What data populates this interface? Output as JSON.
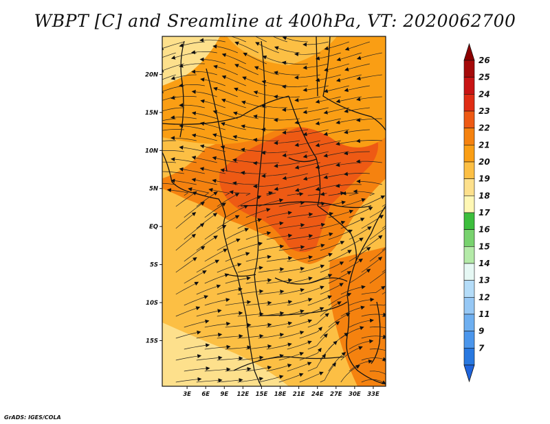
{
  "title": "WBPT [C] and Sreamline at 400hPa, VT: 2020062700",
  "credit": "GrADS: IGES/COLA",
  "map": {
    "lon_range": [
      -1,
      35
    ],
    "lat_range": [
      -21,
      25
    ],
    "lat_ticks": [
      {
        "value": 20,
        "label": "20N"
      },
      {
        "value": 15,
        "label": "15N"
      },
      {
        "value": 10,
        "label": "10N"
      },
      {
        "value": 5,
        "label": "5N"
      },
      {
        "value": 0,
        "label": "EQ"
      },
      {
        "value": -5,
        "label": "5S"
      },
      {
        "value": -10,
        "label": "10S"
      },
      {
        "value": -15,
        "label": "15S"
      }
    ],
    "lon_ticks": [
      {
        "value": 3,
        "label": "3E"
      },
      {
        "value": 6,
        "label": "6E"
      },
      {
        "value": 9,
        "label": "9E"
      },
      {
        "value": 12,
        "label": "12E"
      },
      {
        "value": 15,
        "label": "15E"
      },
      {
        "value": 18,
        "label": "18E"
      },
      {
        "value": 21,
        "label": "21E"
      },
      {
        "value": 24,
        "label": "24E"
      },
      {
        "value": 27,
        "label": "27E"
      },
      {
        "value": 30,
        "label": "30E"
      },
      {
        "value": 33,
        "label": "33E"
      }
    ]
  },
  "colorbar": {
    "levels": [
      {
        "label": "26",
        "color": "#a50a0a"
      },
      {
        "label": "25",
        "color": "#c81414"
      },
      {
        "label": "24",
        "color": "#e02d14"
      },
      {
        "label": "23",
        "color": "#ee5a14"
      },
      {
        "label": "22",
        "color": "#f5820f"
      },
      {
        "label": "21",
        "color": "#fa9e14"
      },
      {
        "label": "20",
        "color": "#fcbf44"
      },
      {
        "label": "19",
        "color": "#fde08c"
      },
      {
        "label": "18",
        "color": "#fff7b4"
      },
      {
        "label": "17",
        "color": "#3cbe3c"
      },
      {
        "label": "16",
        "color": "#78d26e"
      },
      {
        "label": "15",
        "color": "#b4eaa8"
      },
      {
        "label": "14",
        "color": "#e6f8f4"
      },
      {
        "label": "13",
        "color": "#b4dcf8"
      },
      {
        "label": "12",
        "color": "#96c8f5"
      },
      {
        "label": "11",
        "color": "#6eaff0"
      },
      {
        "label": "9",
        "color": "#4b96ec"
      },
      {
        "label": "7",
        "color": "#2878e0"
      }
    ],
    "top_color": "#8c0000",
    "bottom_color": "#1e64dc"
  },
  "field": {
    "base_color": "#fcbf44",
    "regions": [
      {
        "name": "warm-core-central",
        "color": "#f5820f"
      },
      {
        "name": "hot-core-central",
        "color": "#ee5a14"
      },
      {
        "name": "hot-core-northeast",
        "color": "#ee5a14"
      },
      {
        "name": "warm-band-east",
        "color": "#f5820f"
      },
      {
        "name": "warm-band-north",
        "color": "#fa9e14"
      },
      {
        "name": "cool-band-northwest",
        "color": "#fde08c"
      },
      {
        "name": "cool-band-southwest",
        "color": "#fde08c"
      }
    ]
  }
}
